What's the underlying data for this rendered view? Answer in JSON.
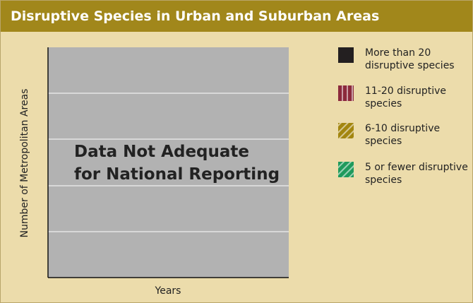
{
  "chart_data": {
    "type": "bar",
    "title": "Disruptive Species in Urban and Suburban Areas",
    "y_label": "Number of Metropolitan Areas",
    "x_label": "Years",
    "annotation": [
      "Data Not Adequate",
      "for National Reporting"
    ],
    "grid": true,
    "legend": "right",
    "series": [
      {
        "name": "More than 20 disruptive species",
        "color": "#231f20",
        "pattern": "solid"
      },
      {
        "name": "11-20 disruptive species",
        "color": "#8c2a3c",
        "pattern": "vertical-stripes"
      },
      {
        "name": "6-10 disruptive species",
        "color": "#a3860f",
        "pattern": "diagonal-stripes"
      },
      {
        "name": "5 or fewer disruptive species",
        "color": "#1f9a5c",
        "pattern": "diagonal-stripes"
      }
    ]
  }
}
